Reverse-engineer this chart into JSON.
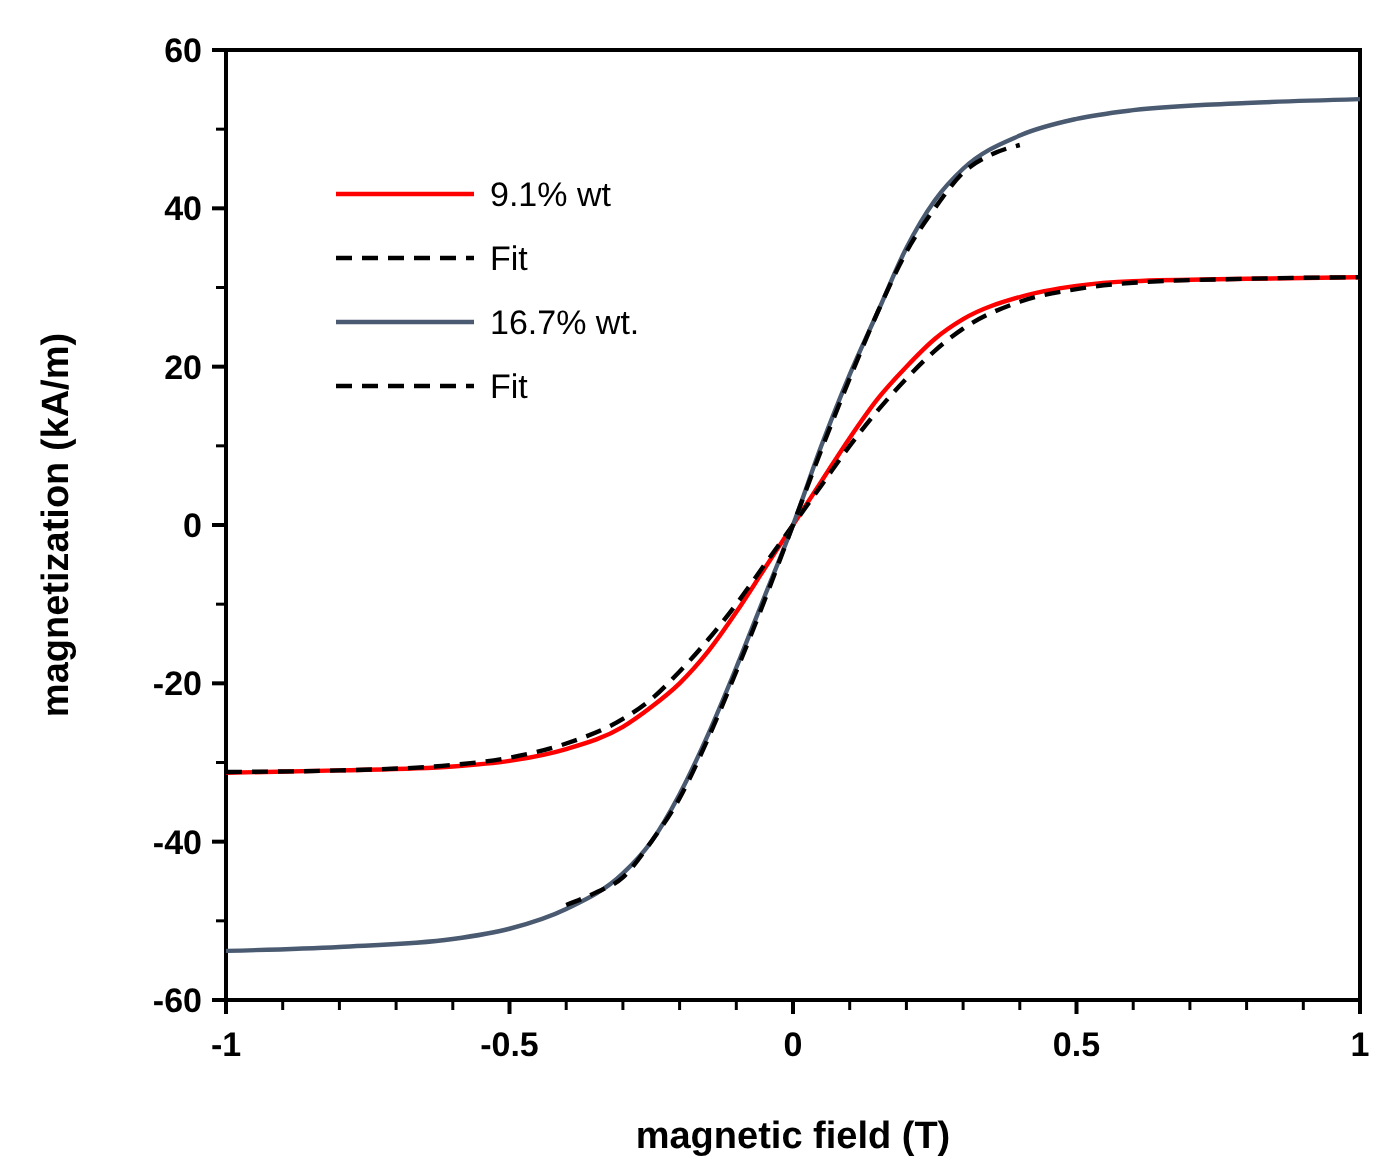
{
  "chart_data": {
    "type": "line",
    "xlabel": "magnetic field (T)",
    "ylabel": "magnetization (kA/m)",
    "xlim": [
      -1,
      1
    ],
    "xticks": [
      -1,
      -0.5,
      0,
      0.5,
      1
    ],
    "ylim": [
      -60,
      60
    ],
    "yticks": [
      -60,
      -40,
      -20,
      0,
      20,
      40,
      60
    ],
    "grid": false,
    "legend": "top left",
    "series": [
      {
        "name": "9.1% wt",
        "color": "#ff0000",
        "line_style": "solid",
        "x": [
          -1,
          -0.8,
          -0.6,
          -0.5,
          -0.4,
          -0.3,
          -0.25,
          -0.2,
          -0.15,
          -0.1,
          -0.05,
          0,
          0.05,
          0.1,
          0.15,
          0.2,
          0.25,
          0.3,
          0.4,
          0.5,
          0.6,
          0.8,
          1
        ],
        "values": [
          -31.3,
          -31.0,
          -30.5,
          -29.8,
          -28.3,
          -25.5,
          -23,
          -20,
          -16,
          -11,
          -5.5,
          0,
          5.5,
          11,
          16,
          20,
          23.5,
          26,
          28.8,
          30.2,
          30.8,
          31.1,
          31.3
        ]
      },
      {
        "name": "Fit",
        "color": "#000000",
        "line_style": "dashed",
        "x": [
          -1,
          -0.8,
          -0.6,
          -0.5,
          -0.4,
          -0.3,
          -0.25,
          -0.2,
          -0.15,
          -0.1,
          -0.05,
          0,
          0.05,
          0.1,
          0.15,
          0.2,
          0.25,
          0.3,
          0.4,
          0.5,
          0.6,
          0.8,
          1
        ],
        "values": [
          -31.2,
          -31.0,
          -30.3,
          -29.4,
          -27.6,
          -24.5,
          -22,
          -18.5,
          -14.5,
          -10,
          -5,
          0,
          5,
          10,
          14.5,
          18.5,
          22,
          24.8,
          28.2,
          29.8,
          30.6,
          31.1,
          31.3
        ]
      },
      {
        "name": "16.7% wt.",
        "color": "#4a5a70",
        "line_style": "solid",
        "x": [
          -1,
          -0.8,
          -0.6,
          -0.5,
          -0.4,
          -0.3,
          -0.25,
          -0.2,
          -0.15,
          -0.1,
          -0.05,
          0,
          0.05,
          0.1,
          0.15,
          0.2,
          0.25,
          0.3,
          0.4,
          0.5,
          0.6,
          0.8,
          1
        ],
        "values": [
          -53.8,
          -53.3,
          -52.3,
          -51,
          -48.5,
          -44,
          -40,
          -34,
          -26.5,
          -18,
          -9,
          0,
          10,
          19,
          27,
          35,
          41,
          45,
          49.2,
          51.3,
          52.4,
          53.3,
          53.8
        ]
      },
      {
        "name": "Fit",
        "color": "#000000",
        "line_style": "dashed",
        "x": [
          -0.4,
          -0.35,
          -0.3,
          -0.25,
          -0.2,
          -0.15,
          -0.1,
          -0.05,
          0,
          0.05,
          0.1,
          0.15,
          0.2,
          0.25,
          0.3,
          0.35,
          0.4
        ],
        "values": [
          -48,
          -46.5,
          -44.5,
          -40,
          -34.5,
          -27,
          -18.5,
          -9.5,
          0,
          9.5,
          18.5,
          27,
          34.5,
          40,
          44.5,
          46.8,
          48
        ]
      }
    ]
  }
}
